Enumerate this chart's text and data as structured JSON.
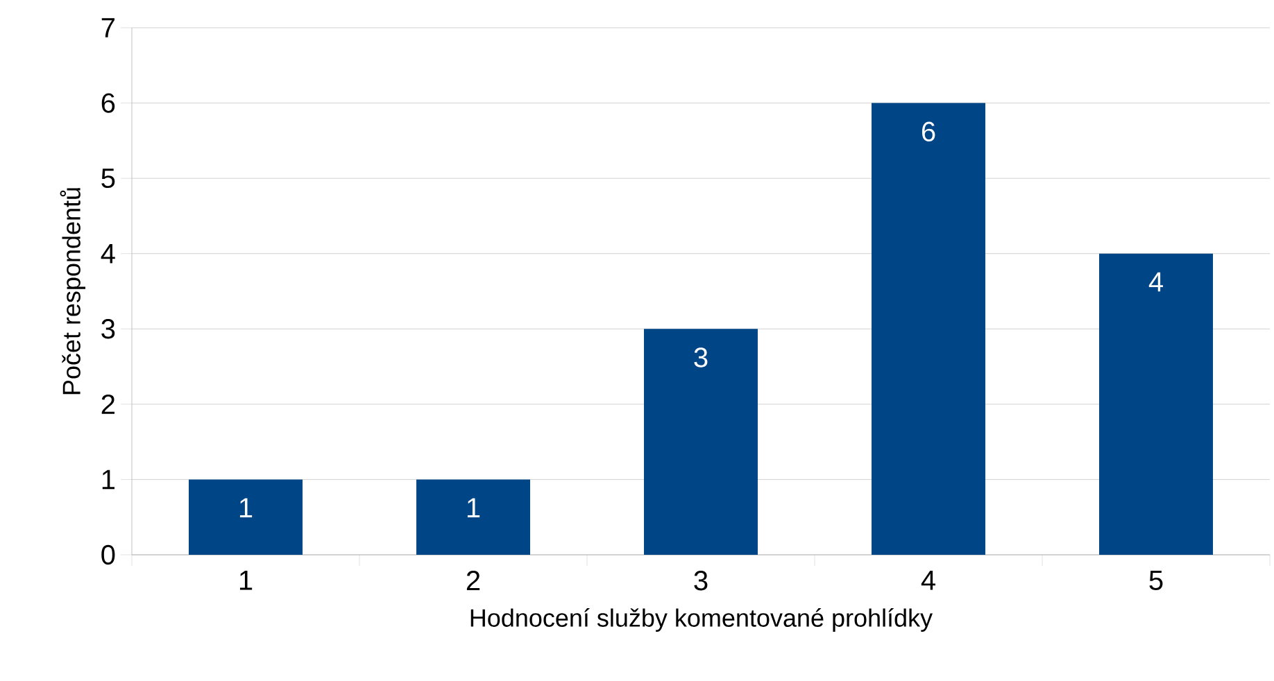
{
  "chart_data": {
    "type": "bar",
    "xlabel": "Hodnocení služby komentované prohlídky",
    "ylabel": "Počet respondentů",
    "categories": [
      "1",
      "2",
      "3",
      "4",
      "5"
    ],
    "values": [
      1,
      1,
      3,
      6,
      4
    ],
    "color": "#004586",
    "ylim": [
      0,
      7
    ],
    "yticks": [
      0,
      1,
      2,
      3,
      4,
      5,
      6,
      7
    ],
    "grid": "y",
    "data_labels": true
  }
}
